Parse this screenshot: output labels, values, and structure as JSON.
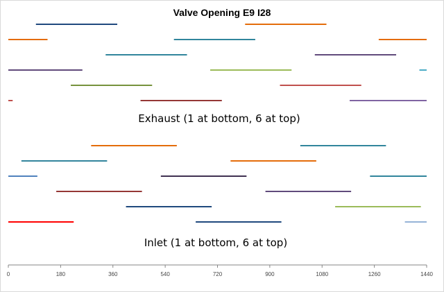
{
  "chart_data": {
    "type": "line",
    "title": "Valve Opening  E9 I28",
    "xlim": [
      0,
      1440
    ],
    "x_ticks": [
      "0",
      "180",
      "360",
      "540",
      "720",
      "900",
      "1080",
      "1260",
      "1440"
    ],
    "annotations": [
      "Exhaust (1 at bottom, 6 at top)",
      "Inlet (1 at bottom, 6 at top)"
    ],
    "series": [
      {
        "group": "exhaust",
        "cylinder": 6,
        "color": "#1f497d",
        "segments": [
          [
            95,
            375
          ]
        ]
      },
      {
        "group": "exhaust",
        "cylinder": 6,
        "color": "#e46c0a",
        "segments": [
          [
            815,
            1095
          ]
        ]
      },
      {
        "group": "exhaust",
        "cylinder": 5,
        "color": "#e46c0a",
        "segments": [
          [
            0,
            135
          ],
          [
            1275,
            1440
          ]
        ]
      },
      {
        "group": "exhaust",
        "cylinder": 5,
        "color": "#31859c",
        "segments": [
          [
            570,
            850
          ]
        ]
      },
      {
        "group": "exhaust",
        "cylinder": 4,
        "color": "#31859c",
        "segments": [
          [
            335,
            615
          ]
        ]
      },
      {
        "group": "exhaust",
        "cylinder": 4,
        "color": "#604a7b",
        "segments": [
          [
            1055,
            1335
          ]
        ]
      },
      {
        "group": "exhaust",
        "cylinder": 3,
        "color": "#604a7b",
        "segments": [
          [
            0,
            255
          ]
        ]
      },
      {
        "group": "exhaust",
        "cylinder": 3,
        "color": "#9bbb59",
        "segments": [
          [
            695,
            975
          ]
        ]
      },
      {
        "group": "exhaust",
        "cylinder": 3,
        "color": "#4bacc6",
        "segments": [
          [
            1415,
            1440
          ]
        ]
      },
      {
        "group": "exhaust",
        "cylinder": 2,
        "color": "#76923c",
        "segments": [
          [
            215,
            495
          ]
        ]
      },
      {
        "group": "exhaust",
        "cylinder": 2,
        "color": "#c0504d",
        "segments": [
          [
            935,
            1215
          ]
        ]
      },
      {
        "group": "exhaust",
        "cylinder": 1,
        "color": "#c0504d",
        "segments": [
          [
            0,
            15
          ]
        ]
      },
      {
        "group": "exhaust",
        "cylinder": 1,
        "color": "#953735",
        "segments": [
          [
            455,
            735
          ]
        ]
      },
      {
        "group": "exhaust",
        "cylinder": 1,
        "color": "#8064a2",
        "segments": [
          [
            1175,
            1440
          ]
        ]
      },
      {
        "group": "inlet",
        "cylinder": 6,
        "color": "#e46c0a",
        "segments": [
          [
            285,
            580
          ]
        ]
      },
      {
        "group": "inlet",
        "cylinder": 6,
        "color": "#31859c",
        "segments": [
          [
            1005,
            1300
          ]
        ]
      },
      {
        "group": "inlet",
        "cylinder": 5,
        "color": "#31859c",
        "segments": [
          [
            45,
            340
          ]
        ]
      },
      {
        "group": "inlet",
        "cylinder": 5,
        "color": "#e46c0a",
        "segments": [
          [
            765,
            1060
          ]
        ]
      },
      {
        "group": "inlet",
        "cylinder": 4,
        "color": "#4f81bd",
        "segments": [
          [
            0,
            100
          ]
        ]
      },
      {
        "group": "inlet",
        "cylinder": 4,
        "color": "#403151",
        "segments": [
          [
            525,
            820
          ]
        ]
      },
      {
        "group": "inlet",
        "cylinder": 4,
        "color": "#31859c",
        "segments": [
          [
            1245,
            1440
          ]
        ]
      },
      {
        "group": "inlet",
        "cylinder": 3,
        "color": "#953735",
        "segments": [
          [
            165,
            460
          ]
        ]
      },
      {
        "group": "inlet",
        "cylinder": 3,
        "color": "#604a7b",
        "segments": [
          [
            885,
            1180
          ]
        ]
      },
      {
        "group": "inlet",
        "cylinder": 2,
        "color": "#1f497d",
        "segments": [
          [
            405,
            700
          ]
        ]
      },
      {
        "group": "inlet",
        "cylinder": 2,
        "color": "#9bbb59",
        "segments": [
          [
            1125,
            1420
          ]
        ]
      },
      {
        "group": "inlet",
        "cylinder": 1,
        "color": "#ff0000",
        "segments": [
          [
            0,
            225
          ]
        ]
      },
      {
        "group": "inlet",
        "cylinder": 1,
        "color": "#1f497d",
        "segments": [
          [
            645,
            940
          ]
        ]
      },
      {
        "group": "inlet",
        "cylinder": 1,
        "color": "#95b3d7",
        "segments": [
          [
            1365,
            1440
          ]
        ]
      }
    ]
  }
}
